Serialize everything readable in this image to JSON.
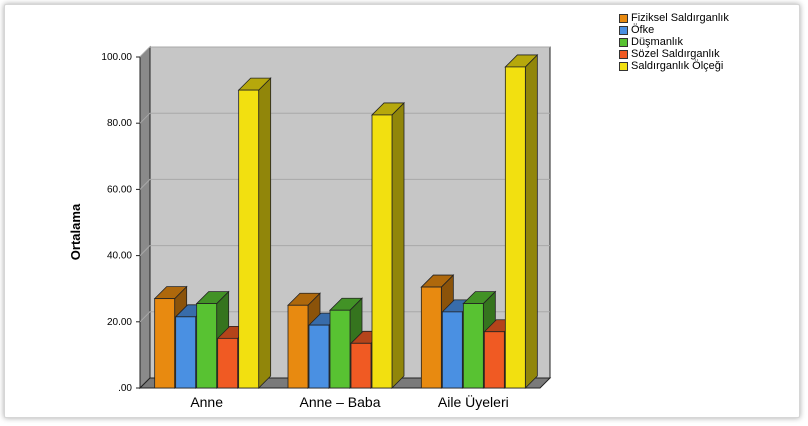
{
  "chart_data": {
    "type": "bar",
    "title": "",
    "xlabel": "",
    "ylabel": "Ortalama",
    "ylim": [
      0,
      100
    ],
    "yticks": [
      ".00",
      "20.00",
      "40.00",
      "60.00",
      "80.00",
      "100.00"
    ],
    "grid": true,
    "legend_position": "top-right",
    "categories": [
      "Anne",
      "Anne – Baba",
      "Aile Üyeleri"
    ],
    "series": [
      {
        "name": "Fiziksel Saldırganlık",
        "color": "#e88a10",
        "values": [
          27,
          25,
          30.5
        ]
      },
      {
        "name": "Öfke",
        "color": "#4a90e2",
        "values": [
          21.5,
          19,
          23
        ]
      },
      {
        "name": "Düşmanlık",
        "color": "#58c232",
        "values": [
          25.5,
          23.5,
          25.5
        ]
      },
      {
        "name": "Sözel Saldırganlık",
        "color": "#f05a23",
        "values": [
          15,
          13.5,
          17
        ]
      },
      {
        "name": "Saldırganlık Ölçeği",
        "color": "#f2e010",
        "values": [
          90,
          82.5,
          97
        ]
      }
    ]
  }
}
